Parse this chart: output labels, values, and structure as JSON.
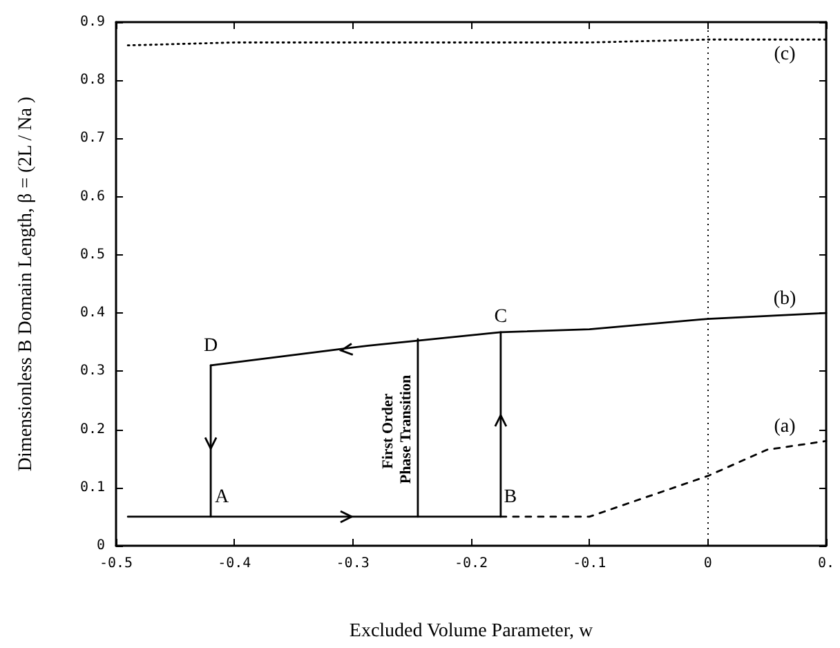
{
  "chart_data": {
    "type": "line",
    "xlabel": "Excluded Volume Parameter, w",
    "ylabel": "Dimensionless B Domain Length, β = (2L / Na )",
    "xlim": [
      -0.5,
      0.1
    ],
    "xticks": [
      -0.5,
      -0.4,
      -0.3,
      -0.2,
      -0.1,
      0,
      {
        "value": 0.1,
        "label": "0."
      }
    ],
    "ylim": [
      0,
      0.9
    ],
    "yticks": [
      0,
      0.1,
      0.2,
      0.3,
      0.4,
      0.5,
      0.6,
      0.7,
      0.8,
      0.9
    ],
    "grid": false,
    "marker": "none",
    "series": [
      {
        "color": "#000000",
        "line_style": "dotted",
        "x": [
          -0.49,
          -0.4,
          -0.1,
          0,
          0.1
        ],
        "values": [
          0.86,
          0.865,
          0.865,
          0.87,
          0.87
        ]
      },
      {
        "color": "#000000",
        "line_style": "solid",
        "x": [
          -0.49,
          -0.175
        ],
        "values": [
          0.05,
          0.05
        ]
      },
      {
        "color": "#000000",
        "line_style": "solid",
        "x": [
          -0.175,
          -0.175
        ],
        "values": [
          0.05,
          0.367
        ]
      },
      {
        "color": "#000000",
        "line_style": "solid",
        "x": [
          -0.42,
          -0.287,
          -0.175,
          -0.1,
          0,
          0.1
        ],
        "values": [
          0.31,
          0.344,
          0.367,
          0.372,
          0.39,
          0.4
        ]
      },
      {
        "color": "#000000",
        "line_style": "solid",
        "x": [
          -0.42,
          -0.42
        ],
        "values": [
          0.31,
          0.05
        ]
      },
      {
        "color": "#000000",
        "line_style": "solid",
        "x": [
          -0.245,
          -0.245
        ],
        "values": [
          0.05,
          0.355
        ]
      },
      {
        "color": "#000000",
        "line_style": "dashed",
        "x": [
          -0.175,
          -0.1,
          -0.05,
          0,
          0.05,
          0.1
        ],
        "values": [
          0.05,
          0.05,
          0.085,
          0.12,
          0.165,
          0.18
        ]
      }
    ],
    "ref_lines": [
      {
        "axis": "x",
        "value": 0,
        "line_style": "dotted",
        "color": "#000000"
      }
    ],
    "annotations": [
      {
        "text": "A",
        "x": -0.42,
        "y": 0.05
      },
      {
        "text": "B",
        "x": -0.175,
        "y": 0.05
      },
      {
        "text": "C",
        "x": -0.175,
        "y": 0.367
      },
      {
        "text": "D",
        "x": -0.42,
        "y": 0.31
      },
      {
        "text": "(a)",
        "x": 0.1,
        "y": 0.18
      },
      {
        "text": "(b)",
        "x": 0.1,
        "y": 0.4
      },
      {
        "text": "(c)",
        "x": 0.1,
        "y": 0.87
      },
      {
        "text": "First Order Phase Transition",
        "x": -0.245,
        "y": 0.2
      }
    ]
  }
}
